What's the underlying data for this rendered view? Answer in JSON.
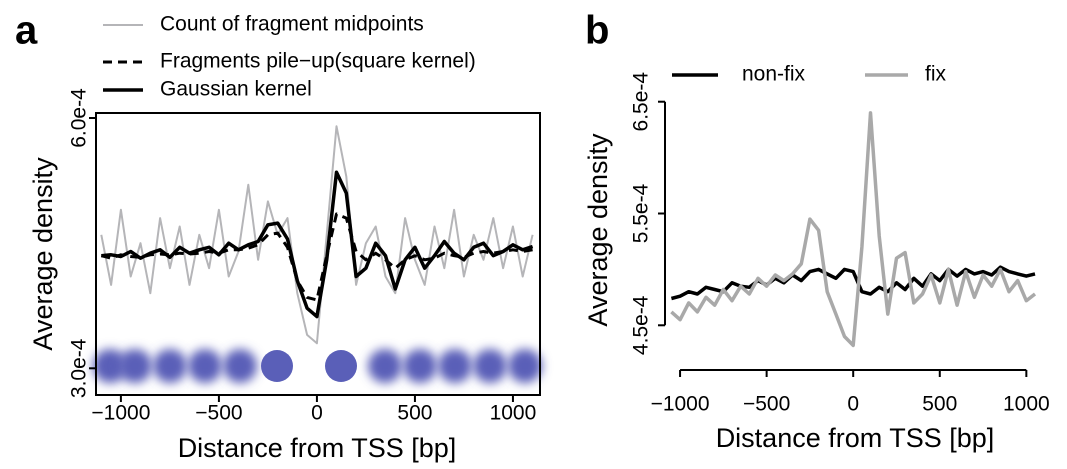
{
  "chart_data": [
    {
      "type": "line",
      "panel_label": "a",
      "x_label": "Distance from TSS [bp]",
      "y_label": "Average density",
      "box": true,
      "x": [
        -1100,
        -1050,
        -1000,
        -950,
        -900,
        -850,
        -800,
        -750,
        -700,
        -650,
        -600,
        -550,
        -500,
        -450,
        -400,
        -350,
        -300,
        -250,
        -200,
        -150,
        -100,
        -50,
        0,
        50,
        100,
        150,
        200,
        250,
        300,
        350,
        400,
        450,
        500,
        550,
        600,
        650,
        700,
        750,
        800,
        850,
        900,
        950,
        1000,
        1050,
        1100
      ],
      "xlim": [
        -1127,
        1138
      ],
      "xticks": [
        {
          "value": -1000,
          "label": "−1000"
        },
        {
          "value": -500,
          "label": "−500"
        },
        0,
        500,
        1000
      ],
      "ylim": [
        0.000268,
        0.000606
      ],
      "yticks": [
        {
          "value": 0.0003,
          "label": "3.0e-4"
        },
        {
          "value": 0.0006,
          "label": "6.0e-4"
        }
      ],
      "series": [
        {
          "name": "Count of fragment midpoints",
          "color": "#b5b5b8",
          "dash": "solid",
          "width": 2,
          "values": [
            0.00046,
            0.0004,
            0.00049,
            0.00041,
            0.00045,
            0.00039,
            0.00048,
            0.00042,
            0.00047,
            0.0004,
            0.00046,
            0.00042,
            0.00049,
            0.00041,
            0.00044,
            0.00052,
            0.00043,
            0.0005,
            0.00046,
            0.00048,
            0.00039,
            0.00034,
            0.00033,
            0.00046,
            0.00059,
            0.00053,
            0.0004,
            0.00045,
            0.00047,
            0.00041,
            0.00039,
            0.00048,
            0.00043,
            0.0004,
            0.00047,
            0.00042,
            0.00049,
            0.00041,
            0.00046,
            0.00043,
            0.00048,
            0.00042,
            0.00047,
            0.00041,
            0.00046
          ]
        },
        {
          "name": "Fragments pile−up(square kernel)",
          "color": "#000000",
          "dash": "dashed",
          "width": 3,
          "values": [
            0.000435,
            0.000432,
            0.000436,
            0.000434,
            0.000433,
            0.000436,
            0.000437,
            0.000436,
            0.000438,
            0.000437,
            0.000438,
            0.00044,
            0.000438,
            0.000442,
            0.000442,
            0.000444,
            0.000448,
            0.00046,
            0.000462,
            0.000445,
            0.000405,
            0.000385,
            0.000382,
            0.000435,
            0.000485,
            0.00048,
            0.00044,
            0.00043,
            0.000438,
            0.00043,
            0.00042,
            0.00043,
            0.000435,
            0.00043,
            0.000432,
            0.000438,
            0.000435,
            0.000433,
            0.000438,
            0.00044,
            0.000438,
            0.00044,
            0.000442,
            0.00044,
            0.000442
          ]
        },
        {
          "name": "Gaussian kernel",
          "color": "#000000",
          "dash": "solid",
          "width": 3.5,
          "values": [
            0.000435,
            0.000436,
            0.000434,
            0.00044,
            0.000432,
            0.000438,
            0.000442,
            0.000433,
            0.000445,
            0.000438,
            0.000442,
            0.000445,
            0.000436,
            0.00045,
            0.000442,
            0.000448,
            0.000452,
            0.000472,
            0.000474,
            0.000455,
            0.000405,
            0.000372,
            0.000362,
            0.00043,
            0.000535,
            0.00051,
            0.00041,
            0.00042,
            0.00045,
            0.000435,
            0.000395,
            0.00043,
            0.000445,
            0.00042,
            0.000435,
            0.000452,
            0.000438,
            0.00043,
            0.000445,
            0.00045,
            0.000435,
            0.00044,
            0.000448,
            0.000442,
            0.000446
          ]
        }
      ]
    },
    {
      "type": "line",
      "panel_label": "b",
      "x_label": "Distance from TSS [bp]",
      "y_label": "Average density",
      "box": false,
      "x": [
        -1050,
        -1000,
        -950,
        -900,
        -850,
        -800,
        -750,
        -700,
        -650,
        -600,
        -550,
        -500,
        -450,
        -400,
        -350,
        -300,
        -250,
        -200,
        -150,
        -100,
        -50,
        0,
        50,
        100,
        150,
        200,
        250,
        300,
        350,
        400,
        450,
        500,
        550,
        600,
        650,
        700,
        750,
        800,
        850,
        900,
        950,
        1000,
        1050
      ],
      "xlim": [
        -1087,
        1050
      ],
      "xticks": [
        {
          "value": -1000,
          "label": "−1000"
        },
        {
          "value": -500,
          "label": "−500"
        },
        0,
        500,
        1000
      ],
      "ylim": [
        0.00041,
        0.000656
      ],
      "yticks": [
        {
          "value": 0.00045,
          "label": "4.5e-4"
        },
        {
          "value": 0.00055,
          "label": "5.5e-4"
        },
        {
          "value": 0.00065,
          "label": "6.5e-4"
        }
      ],
      "series": [
        {
          "name": "non-fix",
          "color": "#000000",
          "dash": "solid",
          "width": 3.5,
          "values": [
            0.000474,
            0.000476,
            0.00048,
            0.000478,
            0.000484,
            0.000482,
            0.00048,
            0.000488,
            0.000485,
            0.000484,
            0.00049,
            0.000486,
            0.000492,
            0.000488,
            0.000495,
            0.00049,
            0.000498,
            0.0005,
            0.000496,
            0.000492,
            0.0005,
            0.000498,
            0.00048,
            0.000478,
            0.000484,
            0.00048,
            0.000488,
            0.000482,
            0.000492,
            0.000485,
            0.000496,
            0.00049,
            0.0005,
            0.000494,
            0.0005,
            0.000496,
            0.000498,
            0.000495,
            0.000502,
            0.000498,
            0.000496,
            0.000494,
            0.000496
          ]
        },
        {
          "name": "fix",
          "color": "#a9a9a9",
          "dash": "solid",
          "width": 3.5,
          "values": [
            0.000462,
            0.000455,
            0.00047,
            0.000462,
            0.000475,
            0.000468,
            0.000482,
            0.000472,
            0.000485,
            0.000478,
            0.000492,
            0.000485,
            0.000495,
            0.00049,
            0.000496,
            0.000505,
            0.000545,
            0.000535,
            0.00048,
            0.00046,
            0.00044,
            0.000432,
            0.00052,
            0.00064,
            0.00053,
            0.00046,
            0.00051,
            0.000515,
            0.00047,
            0.000478,
            0.000495,
            0.00047,
            0.0005,
            0.000468,
            0.000498,
            0.000475,
            0.000495,
            0.000485,
            0.0005,
            0.00048,
            0.00049,
            0.000472,
            0.000478
          ]
        }
      ]
    }
  ]
}
